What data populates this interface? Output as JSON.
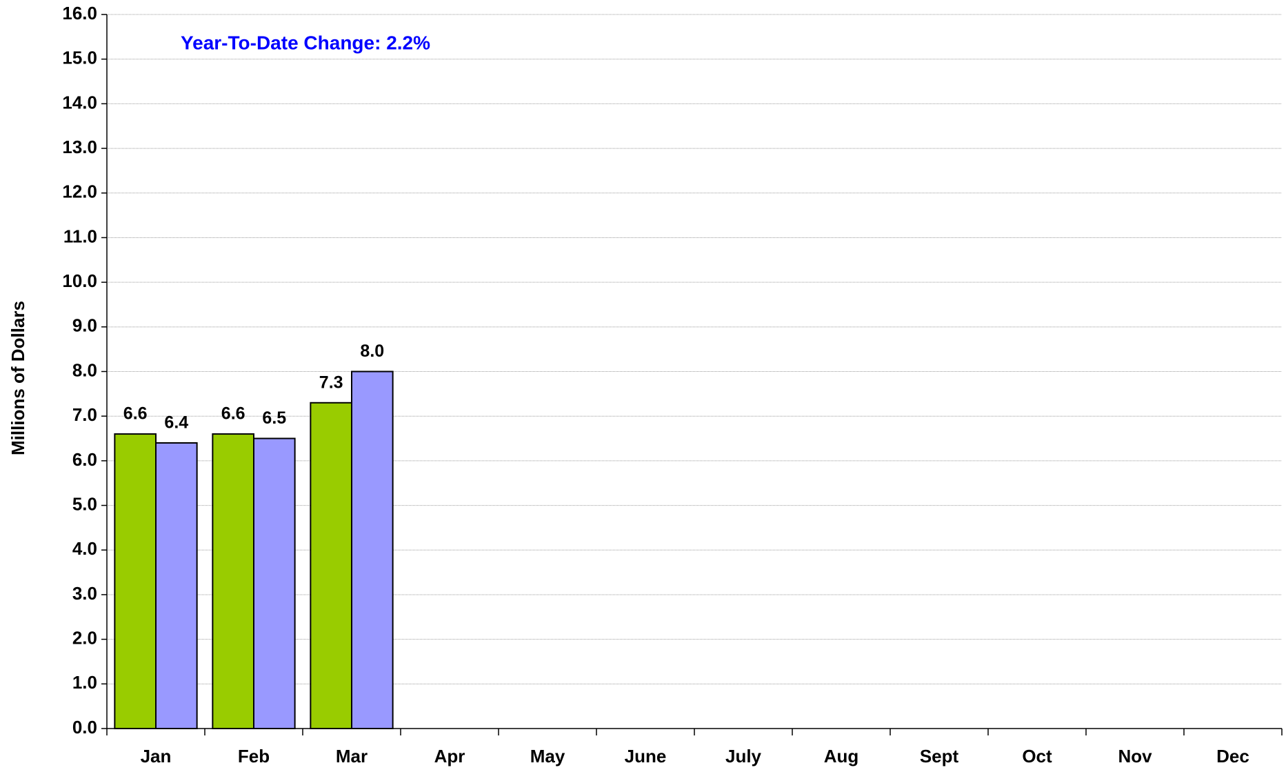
{
  "chart_data": {
    "type": "bar",
    "annotation": "Year-To-Date Change: 2.2%",
    "y_label": "Millions of Dollars",
    "categories": [
      "Jan",
      "Feb",
      "Mar",
      "Apr",
      "May",
      "June",
      "July",
      "Aug",
      "Sept",
      "Oct",
      "Nov",
      "Dec"
    ],
    "series": [
      {
        "color": "#99cc00",
        "values": [
          6.6,
          6.6,
          7.3,
          null,
          null,
          null,
          null,
          null,
          null,
          null,
          null,
          null
        ],
        "value_labels": [
          "6.6",
          "6.6",
          "7.3",
          null,
          null,
          null,
          null,
          null,
          null,
          null,
          null,
          null
        ]
      },
      {
        "color": "#9999ff",
        "values": [
          6.4,
          6.5,
          8.0,
          null,
          null,
          null,
          null,
          null,
          null,
          null,
          null,
          null
        ],
        "value_labels": [
          "6.4",
          "6.5",
          "8.0",
          null,
          null,
          null,
          null,
          null,
          null,
          null,
          null,
          null
        ]
      }
    ],
    "ylim": [
      0,
      16
    ],
    "yticks": [
      {
        "value": 0,
        "label": "0.0"
      },
      {
        "value": 1,
        "label": "1.0"
      },
      {
        "value": 2,
        "label": "2.0"
      },
      {
        "value": 3,
        "label": "3.0"
      },
      {
        "value": 4,
        "label": "4.0"
      },
      {
        "value": 5,
        "label": "5.0"
      },
      {
        "value": 6,
        "label": "6.0"
      },
      {
        "value": 7,
        "label": "7.0"
      },
      {
        "value": 8,
        "label": "8.0"
      },
      {
        "value": 9,
        "label": "9.0"
      },
      {
        "value": 10,
        "label": "10.0"
      },
      {
        "value": 11,
        "label": "11.0"
      },
      {
        "value": 12,
        "label": "12.0"
      },
      {
        "value": 13,
        "label": "13.0"
      },
      {
        "value": 14,
        "label": "14.0"
      },
      {
        "value": 15,
        "label": "15.0"
      },
      {
        "value": 16,
        "label": "16.0"
      }
    ],
    "grid": true,
    "annotation_color": "#0000ff"
  }
}
